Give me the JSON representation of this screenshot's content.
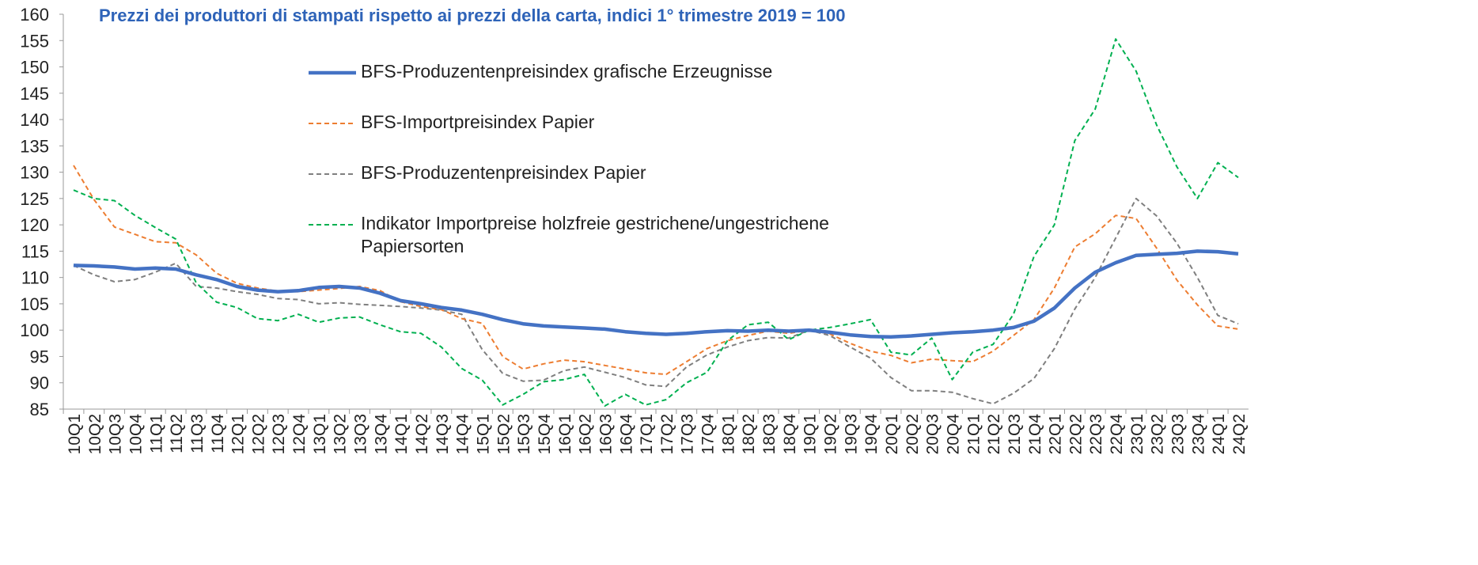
{
  "chart_data": {
    "type": "line",
    "title": "Prezzi dei produttori di stampati rispetto ai prezzi della carta, indici 1° trimestre 2019 = 100",
    "categories": [
      "10Q1",
      "10Q2",
      "10Q3",
      "10Q4",
      "11Q1",
      "11Q2",
      "11Q3",
      "11Q4",
      "12Q1",
      "12Q2",
      "12Q3",
      "12Q4",
      "13Q1",
      "13Q2",
      "13Q3",
      "13Q4",
      "14Q1",
      "14Q2",
      "14Q3",
      "14Q4",
      "15Q1",
      "15Q2",
      "15Q3",
      "15Q4",
      "16Q1",
      "16Q2",
      "16Q3",
      "16Q4",
      "17Q1",
      "17Q2",
      "17Q3",
      "17Q4",
      "18Q1",
      "18Q2",
      "18Q3",
      "18Q4",
      "19Q1",
      "19Q2",
      "19Q3",
      "19Q4",
      "20Q1",
      "20Q2",
      "20Q3",
      "20Q4",
      "21Q1",
      "21Q2",
      "21Q3",
      "21Q4",
      "22Q1",
      "22Q2",
      "22Q3",
      "22Q4",
      "23Q1",
      "23Q2",
      "23Q3",
      "23Q4",
      "24Q1",
      "24Q2"
    ],
    "series": [
      {
        "name": "BFS-Produzentenpreisindex grafische Erzeugnisse",
        "color": "#4472c4",
        "style": "solid",
        "values": [
          112.3,
          112.2,
          112.0,
          111.6,
          111.8,
          111.6,
          110.5,
          109.6,
          108.3,
          107.6,
          107.3,
          107.5,
          108.1,
          108.3,
          108.0,
          107.0,
          105.6,
          105.0,
          104.3,
          103.8,
          103.0,
          102.0,
          101.2,
          100.8,
          100.6,
          100.4,
          100.2,
          99.7,
          99.4,
          99.2,
          99.4,
          99.7,
          99.9,
          99.8,
          100.0,
          99.8,
          100.0,
          99.6,
          99.1,
          98.8,
          98.7,
          98.9,
          99.2,
          99.5,
          99.7,
          100.0,
          100.5,
          101.7,
          104.2,
          108.0,
          111.0,
          112.8,
          114.2,
          114.4,
          114.6,
          115.0,
          114.9,
          114.5
        ]
      },
      {
        "name": "BFS-Importpreisindex Papier",
        "color": "#ed7d31",
        "style": "dashed",
        "values": [
          131.3,
          124.8,
          119.6,
          118.2,
          116.8,
          116.6,
          114.3,
          110.8,
          108.9,
          108.0,
          107.4,
          107.3,
          107.6,
          107.9,
          108.3,
          107.5,
          105.4,
          104.5,
          103.9,
          102.2,
          101.3,
          95.0,
          92.6,
          93.6,
          94.3,
          94.0,
          93.3,
          92.6,
          91.9,
          91.6,
          94.0,
          96.5,
          98.0,
          99.0,
          99.8,
          99.4,
          100.0,
          99.3,
          97.5,
          96.0,
          95.2,
          93.8,
          94.5,
          94.2,
          94.0,
          96.0,
          99.0,
          102.0,
          108.0,
          115.8,
          118.3,
          121.8,
          121.2,
          115.6,
          109.5,
          104.8,
          100.8,
          100.2
        ]
      },
      {
        "name": "BFS-Produzentenpreisindex Papier",
        "color": "#7f7f7f",
        "style": "dashed",
        "values": [
          112.3,
          110.5,
          109.2,
          109.6,
          111.0,
          112.7,
          108.3,
          108.0,
          107.3,
          106.8,
          106.0,
          105.8,
          105.0,
          105.2,
          104.9,
          104.7,
          104.5,
          104.2,
          103.8,
          103.0,
          96.3,
          91.8,
          90.3,
          90.5,
          92.3,
          93.0,
          92.0,
          91.0,
          89.6,
          89.3,
          93.0,
          95.3,
          96.8,
          98.0,
          98.6,
          98.5,
          100.0,
          99.0,
          96.8,
          94.7,
          91.0,
          88.5,
          88.5,
          88.2,
          87.0,
          86.0,
          88.0,
          90.8,
          96.5,
          104.0,
          110.0,
          117.5,
          125.0,
          121.7,
          116.5,
          110.0,
          102.8,
          101.2
        ]
      },
      {
        "name": "Indikator Importpreise holzfreie gestrichene/ungestrichene Papiersorten",
        "color": "#00b050",
        "style": "dashed",
        "values": [
          126.6,
          125.0,
          124.6,
          121.8,
          119.5,
          117.3,
          109.0,
          105.3,
          104.3,
          102.2,
          101.8,
          103.0,
          101.5,
          102.3,
          102.5,
          101.0,
          99.7,
          99.4,
          96.8,
          92.7,
          90.5,
          85.8,
          87.8,
          90.2,
          90.6,
          91.6,
          85.6,
          87.8,
          85.8,
          86.8,
          90.0,
          92.0,
          98.0,
          101.0,
          101.5,
          98.2,
          100.0,
          100.5,
          101.2,
          102.0,
          95.8,
          95.3,
          98.5,
          90.6,
          95.8,
          97.3,
          103.0,
          114.0,
          120.0,
          136.0,
          142.0,
          155.3,
          149.2,
          139.0,
          131.0,
          125.0,
          131.8,
          129.0
        ]
      }
    ],
    "ylim": [
      85,
      160
    ],
    "yticks": [
      85,
      90,
      95,
      100,
      105,
      110,
      115,
      120,
      125,
      130,
      135,
      140,
      145,
      150,
      155,
      160
    ],
    "grid": false
  }
}
